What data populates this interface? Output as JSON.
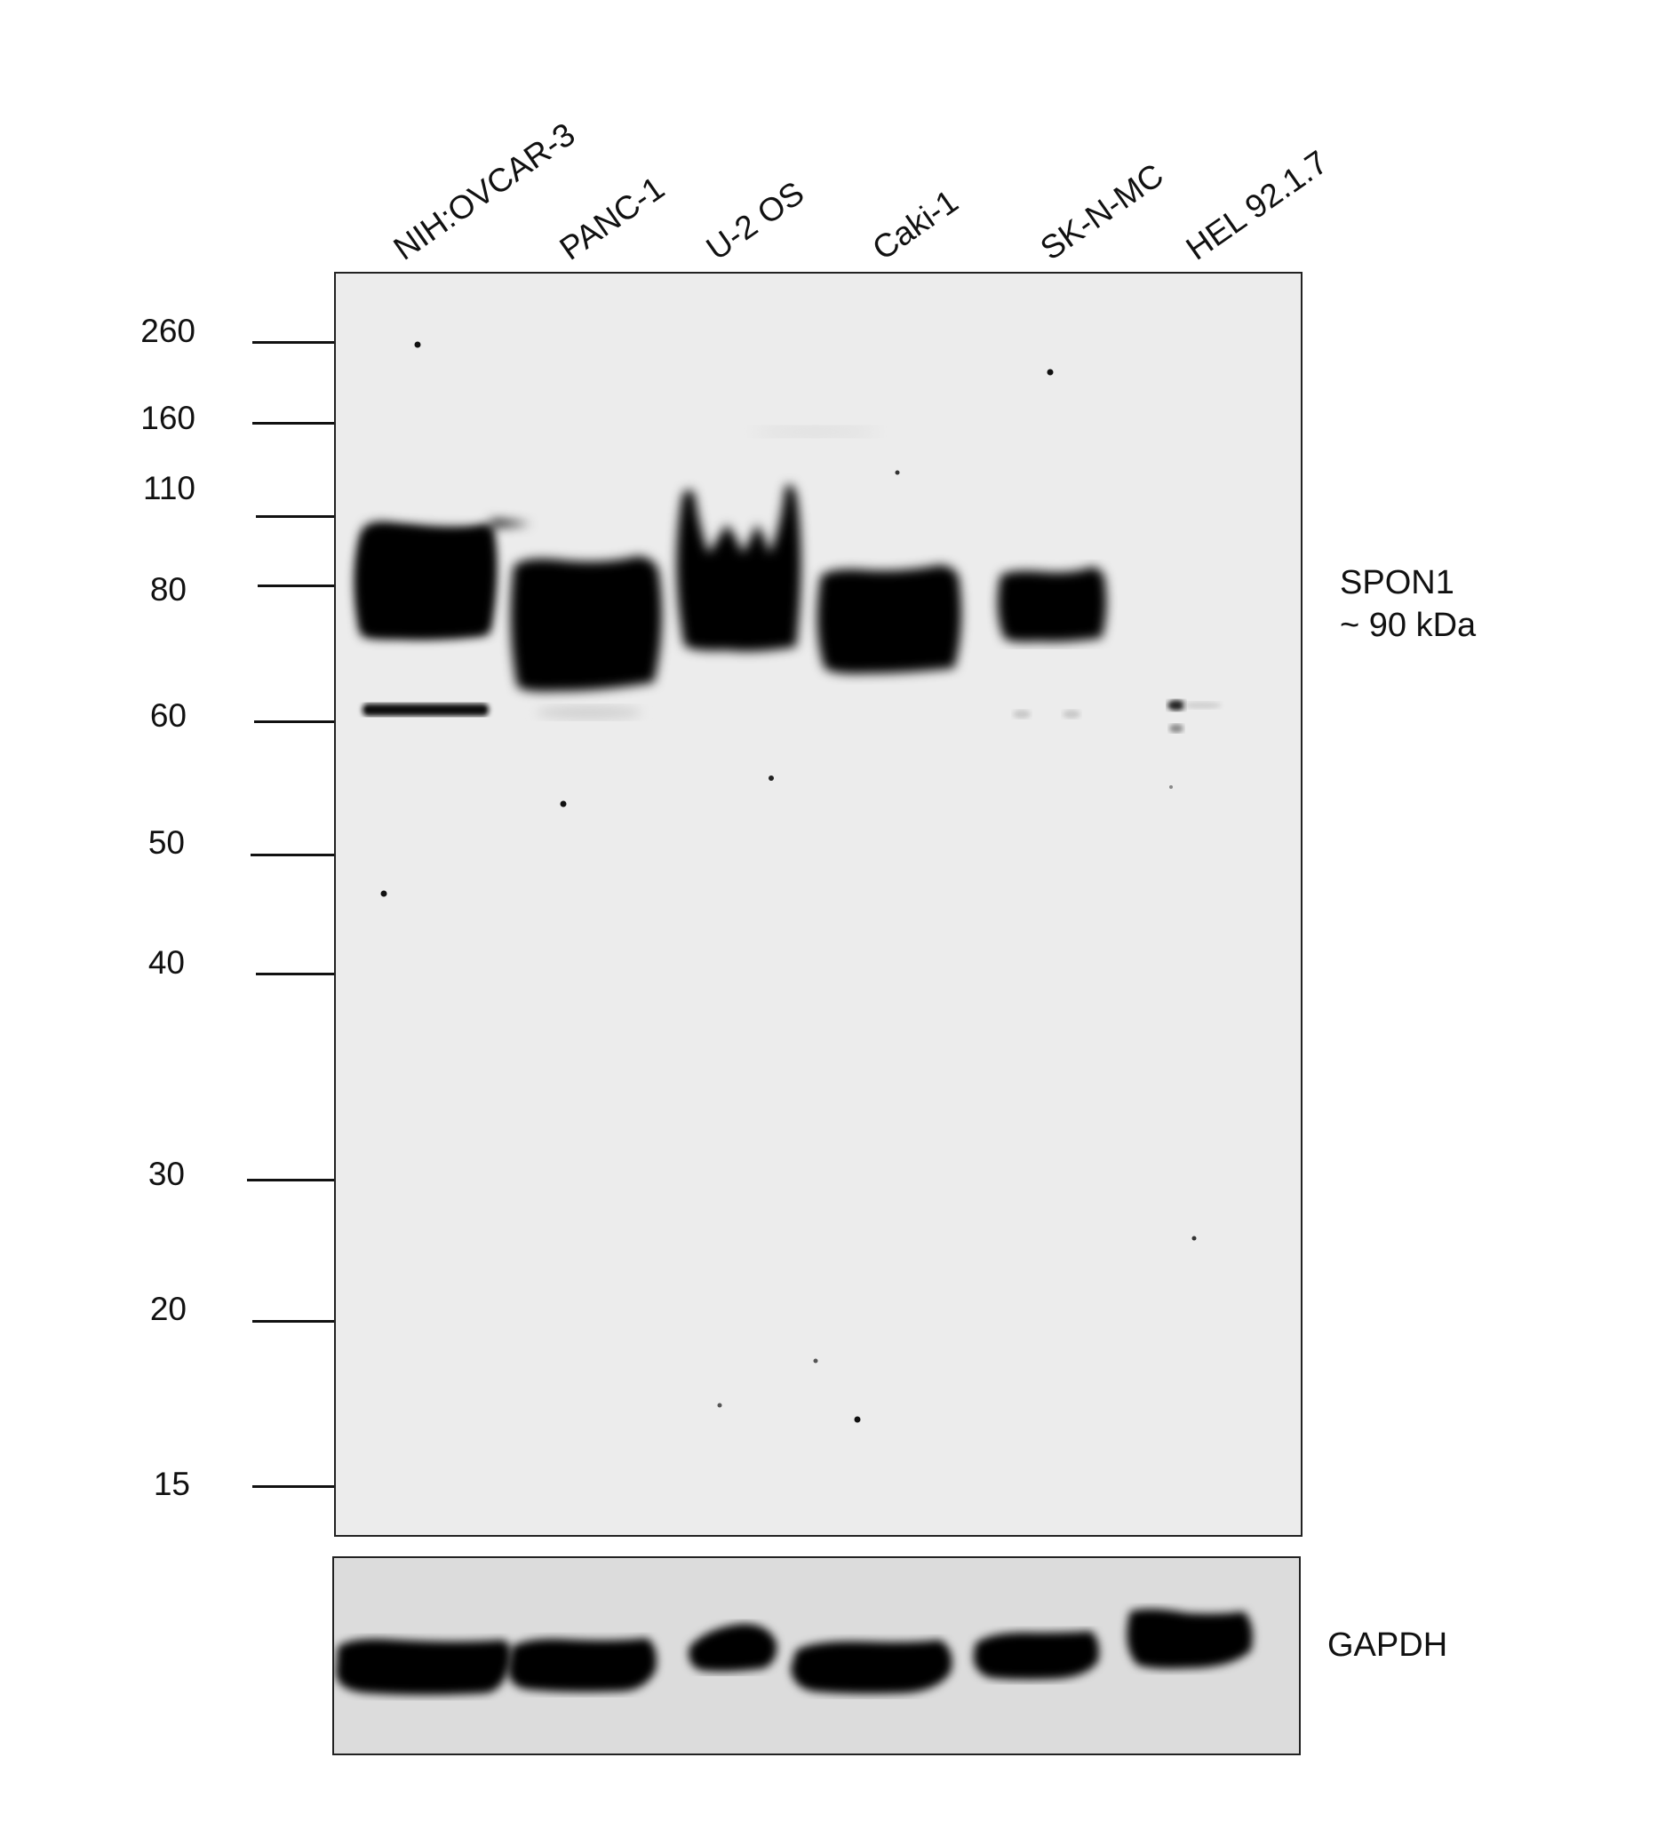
{
  "lanes": [
    "NIH:OVCAR-3",
    "PANC-1",
    "U-2 OS",
    "Caki-1",
    "SK-N-MC",
    "HEL 92.1.7"
  ],
  "markers": [
    {
      "label": "260"
    },
    {
      "label": "160"
    },
    {
      "label": "110"
    },
    {
      "label": ""
    },
    {
      "label": "80"
    },
    {
      "label": "60"
    },
    {
      "label": "50"
    },
    {
      "label": "40"
    },
    {
      "label": "30"
    },
    {
      "label": "20"
    },
    {
      "label": "15"
    }
  ],
  "target": {
    "name": "SPON1",
    "size": "~ 90 kDa"
  },
  "loading_control": {
    "name": "GAPDH"
  },
  "colors": {
    "main_blot_bg": "#ececec",
    "gapdh_blot_bg": "#dcdcdc",
    "band": "#050505"
  }
}
